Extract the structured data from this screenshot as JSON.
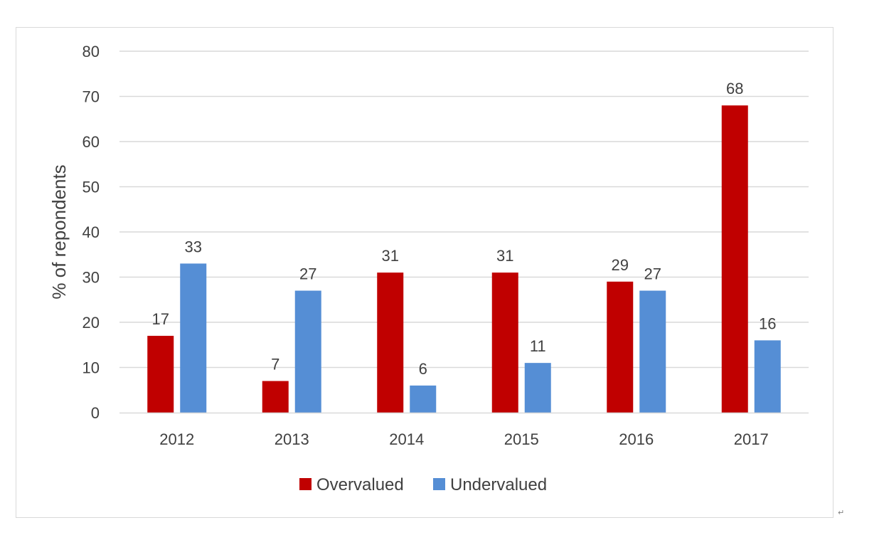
{
  "chart_data": {
    "type": "bar",
    "categories": [
      "2012",
      "2013",
      "2014",
      "2015",
      "2016",
      "2017"
    ],
    "series": [
      {
        "name": "Overvalued",
        "color": "#c00000",
        "values": [
          17,
          7,
          31,
          31,
          29,
          68
        ]
      },
      {
        "name": "Undervalued",
        "color": "#558ed5",
        "values": [
          33,
          27,
          6,
          11,
          27,
          16
        ]
      }
    ],
    "ylabel": "% of repondents",
    "xlabel": "",
    "ylim": [
      0,
      80
    ],
    "yticks": [
      0,
      10,
      20,
      30,
      40,
      50,
      60,
      70,
      80
    ],
    "grid": true,
    "gridColor": "#d9d9d9",
    "legend_position": "bottom",
    "data_labels": true
  },
  "return_mark": "↵"
}
